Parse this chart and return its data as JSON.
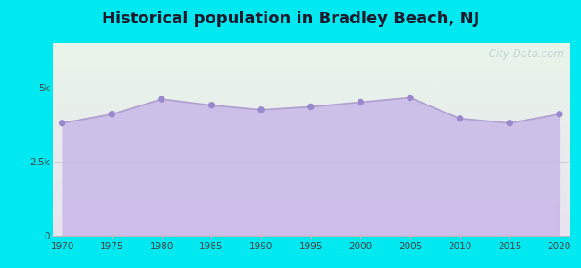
{
  "title": "Historical population in Bradley Beach, NJ",
  "years": [
    1970,
    1975,
    1980,
    1985,
    1990,
    1995,
    2000,
    2005,
    2010,
    2015,
    2020
  ],
  "population": [
    3800,
    4100,
    4600,
    4400,
    4250,
    4350,
    4500,
    4650,
    3950,
    3800,
    4100
  ],
  "ylim": [
    0,
    6500
  ],
  "yticks": [
    0,
    2500,
    5000
  ],
  "ytick_labels": [
    "0",
    "2.5k",
    "5k"
  ],
  "xticks": [
    1970,
    1975,
    1980,
    1985,
    1990,
    1995,
    2000,
    2005,
    2010,
    2015,
    2020
  ],
  "line_color": "#b0a0d0",
  "fill_color": "#c8b8e8",
  "fill_alpha": 0.85,
  "marker_color": "#9988cc",
  "marker_size": 28,
  "background_outer": "#00e8f0",
  "grad_top_left": "#e8f5e9",
  "grad_bottom_right": "#e8e4f0",
  "title_color": "#1a1a2e",
  "title_fontsize": 13,
  "watermark": " City-Data.com",
  "watermark_color": "#a0bcc8",
  "watermark_alpha": 0.55,
  "xlim_left": 1969,
  "xlim_right": 2021
}
